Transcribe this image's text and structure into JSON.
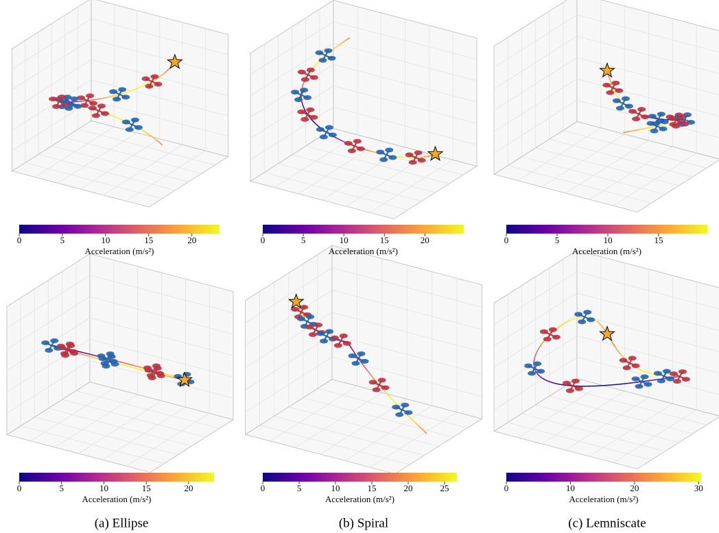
{
  "chart_data": [
    {
      "type": "colorbar",
      "xlabel": "Acceleration (m/s²)",
      "xlim": [
        0,
        23.2
      ],
      "xticks": [
        0,
        5,
        10,
        15,
        20
      ],
      "colors": [
        "#0d0887",
        "#6a00a8",
        "#b12a90",
        "#e16462",
        "#fca636",
        "#f0f921"
      ]
    },
    {
      "type": "colorbar",
      "xlabel": "Acceleration (m/s²)",
      "xlim": [
        0,
        24.8
      ],
      "xticks": [
        0,
        5,
        10,
        15,
        20
      ],
      "colors": [
        "#0d0887",
        "#6a00a8",
        "#b12a90",
        "#e16462",
        "#fca636",
        "#f0f921"
      ]
    },
    {
      "type": "colorbar",
      "xlabel": "Acceleration (m/s²)",
      "xlim": [
        0,
        19.8
      ],
      "xticks": [
        0,
        5,
        10,
        15
      ],
      "colors": [
        "#0d0887",
        "#6a00a8",
        "#b12a90",
        "#e16462",
        "#fca636",
        "#f0f921"
      ]
    },
    {
      "type": "colorbar",
      "xlabel": "Acceleration (m/s²)",
      "xlim": [
        0,
        23.0
      ],
      "xticks": [
        0,
        5,
        10,
        15,
        20
      ],
      "colors": [
        "#0d0887",
        "#6a00a8",
        "#b12a90",
        "#e16462",
        "#fca636",
        "#f0f921"
      ]
    },
    {
      "type": "colorbar",
      "xlabel": "Acceleration (m/s²)",
      "xlim": [
        0,
        26.7
      ],
      "xticks": [
        0,
        5,
        10,
        15,
        20,
        25
      ],
      "colors": [
        "#0d0887",
        "#6a00a8",
        "#b12a90",
        "#e16462",
        "#fca636",
        "#f0f921"
      ]
    },
    {
      "type": "colorbar",
      "xlabel": "Acceleration (m/s²)",
      "xlim": [
        0,
        30.4
      ],
      "xticks": [
        0,
        10,
        20,
        30
      ],
      "colors": [
        "#0d0887",
        "#6a00a8",
        "#b12a90",
        "#e16462",
        "#fca636",
        "#f0f921"
      ]
    }
  ],
  "captions": [
    "(a) Ellipse",
    "(b) Spiral",
    "(c) Lemniscate"
  ]
}
